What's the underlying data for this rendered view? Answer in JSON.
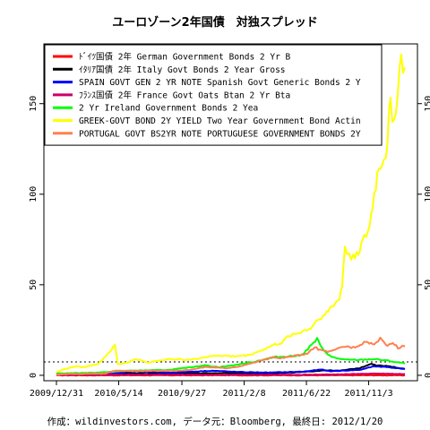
{
  "chart_data": {
    "type": "line",
    "title": "ユーロゾーン2年国債　対独スプレッド",
    "footer": "作成：wildinvestors.com, データ元：Bloomberg, 最終日: 2012/1/20",
    "x_start": "2009-12-31",
    "x_end": "2012-01-20",
    "x_ticks": [
      "2009/12/31",
      "2010/5/14",
      "2010/9/27",
      "2011/2/8",
      "2011/6/22",
      "2011/11/3"
    ],
    "ylim": [
      -3,
      183
    ],
    "y_ticks": [
      0,
      50,
      100,
      150
    ],
    "grid": false,
    "legend_position": "top-left",
    "series": [
      {
        "name": "ﾄﾞｲﾂ国債 2年 German Government Bonds 2 Yr B",
        "color": "#ff0000",
        "points": [
          [
            "2009-12-31",
            0
          ],
          [
            "2012-01-20",
            0
          ]
        ]
      },
      {
        "name": "ｲﾀﾘｱ国債 2年 Italy Govt Bonds 2 Year Gross",
        "color": "#000000",
        "points": [
          [
            "2009-12-31",
            0.5
          ],
          [
            "2010-04-01",
            0.5
          ],
          [
            "2010-05-10",
            1.0
          ],
          [
            "2010-09-01",
            1.0
          ],
          [
            "2011-01-10",
            1.2
          ],
          [
            "2011-04-01",
            1.0
          ],
          [
            "2011-06-15",
            1.8
          ],
          [
            "2011-08-01",
            2.8
          ],
          [
            "2011-09-01",
            2.5
          ],
          [
            "2011-10-15",
            4.0
          ],
          [
            "2011-11-09",
            6.5
          ],
          [
            "2011-11-20",
            5.5
          ],
          [
            "2011-12-15",
            5.0
          ],
          [
            "2012-01-20",
            3.5
          ]
        ]
      },
      {
        "name": "SPAIN GOVT GEN  2 YR NOTE Spanish Govt Generic Bonds 2 Y",
        "color": "#0000ff",
        "points": [
          [
            "2009-12-31",
            0.5
          ],
          [
            "2010-05-01",
            1.0
          ],
          [
            "2010-06-15",
            2.2
          ],
          [
            "2010-09-01",
            1.5
          ],
          [
            "2010-12-01",
            2.5
          ],
          [
            "2011-02-01",
            1.8
          ],
          [
            "2011-04-01",
            1.5
          ],
          [
            "2011-06-15",
            2.0
          ],
          [
            "2011-07-25",
            3.2
          ],
          [
            "2011-08-10",
            2.2
          ],
          [
            "2011-10-15",
            3.0
          ],
          [
            "2011-11-15",
            5.0
          ],
          [
            "2011-12-15",
            4.5
          ],
          [
            "2012-01-20",
            3.5
          ]
        ]
      },
      {
        "name": "ﾌﾗﾝｽ国債 2年 France Govt Oats Btan 2 Yr Bta",
        "color": "#cc0066",
        "points": [
          [
            "2009-12-31",
            0.2
          ],
          [
            "2010-06-01",
            0.3
          ],
          [
            "2011-01-01",
            0.3
          ],
          [
            "2011-06-01",
            0.3
          ],
          [
            "2011-09-01",
            0.5
          ],
          [
            "2011-11-15",
            1.0
          ],
          [
            "2012-01-20",
            0.7
          ]
        ]
      },
      {
        "name": "2 Yr Ireland Government Bonds 2 Yea",
        "color": "#00ff00",
        "points": [
          [
            "2009-12-31",
            1.0
          ],
          [
            "2010-04-01",
            1.5
          ],
          [
            "2010-06-01",
            2.5
          ],
          [
            "2010-09-01",
            3.0
          ],
          [
            "2010-11-15",
            5.5
          ],
          [
            "2010-12-15",
            4.5
          ],
          [
            "2011-01-15",
            5.5
          ],
          [
            "2011-03-01",
            7.5
          ],
          [
            "2011-04-15",
            10.0
          ],
          [
            "2011-05-15",
            10.5
          ],
          [
            "2011-06-10",
            11.0
          ],
          [
            "2011-06-25",
            14.5
          ],
          [
            "2011-07-15",
            20.0
          ],
          [
            "2011-07-25",
            15.0
          ],
          [
            "2011-08-15",
            10.0
          ],
          [
            "2011-09-15",
            8.5
          ],
          [
            "2011-10-15",
            8.5
          ],
          [
            "2011-11-15",
            9.0
          ],
          [
            "2011-12-15",
            8.0
          ],
          [
            "2012-01-20",
            6.5
          ]
        ]
      },
      {
        "name": "GREEK-GOVT BOND 2Y YIELD Two Year Government Bond Actin",
        "color": "#ffff00",
        "points": [
          [
            "2009-12-31",
            2.0
          ],
          [
            "2010-01-20",
            3.5
          ],
          [
            "2010-02-10",
            5.0
          ],
          [
            "2010-03-01",
            4.5
          ],
          [
            "2010-04-01",
            6.5
          ],
          [
            "2010-04-28",
            14.0
          ],
          [
            "2010-05-06",
            16.5
          ],
          [
            "2010-05-12",
            6.0
          ],
          [
            "2010-06-01",
            7.0
          ],
          [
            "2010-06-20",
            9.0
          ],
          [
            "2010-07-15",
            7.0
          ],
          [
            "2010-08-15",
            8.5
          ],
          [
            "2010-09-15",
            9.0
          ],
          [
            "2010-10-15",
            8.5
          ],
          [
            "2010-11-15",
            10.0
          ],
          [
            "2010-12-15",
            11.0
          ],
          [
            "2011-01-15",
            10.5
          ],
          [
            "2011-02-15",
            11.0
          ],
          [
            "2011-03-15",
            13.5
          ],
          [
            "2011-04-15",
            17.0
          ],
          [
            "2011-05-01",
            18.0
          ],
          [
            "2011-05-15",
            22.0
          ],
          [
            "2011-06-01",
            23.0
          ],
          [
            "2011-06-15",
            24.5
          ],
          [
            "2011-07-01",
            26.0
          ],
          [
            "2011-07-20",
            32.0
          ],
          [
            "2011-08-01",
            33.0
          ],
          [
            "2011-08-15",
            38.0
          ],
          [
            "2011-09-01",
            42.0
          ],
          [
            "2011-09-07",
            50.0
          ],
          [
            "2011-09-13",
            72.0
          ],
          [
            "2011-09-22",
            65.0
          ],
          [
            "2011-10-01",
            66.0
          ],
          [
            "2011-10-15",
            70.0
          ],
          [
            "2011-10-25",
            75.0
          ],
          [
            "2011-11-05",
            82.0
          ],
          [
            "2011-11-15",
            100.0
          ],
          [
            "2011-11-25",
            115.0
          ],
          [
            "2011-12-01",
            118.0
          ],
          [
            "2011-12-10",
            122.0
          ],
          [
            "2011-12-20",
            150.0
          ],
          [
            "2011-12-28",
            140.0
          ],
          [
            "2012-01-05",
            160.0
          ],
          [
            "2012-01-12",
            175.0
          ],
          [
            "2012-01-20",
            170.0
          ]
        ]
      },
      {
        "name": "PORTUGAL GOVT BS2YR NOTE PORTUGUESE GOVERNMENT BONDS 2Y",
        "color": "#ff8050",
        "points": [
          [
            "2009-12-31",
            0.5
          ],
          [
            "2010-04-15",
            1.0
          ],
          [
            "2010-05-05",
            2.5
          ],
          [
            "2010-06-01",
            2.5
          ],
          [
            "2010-09-01",
            2.5
          ],
          [
            "2010-10-15",
            3.0
          ],
          [
            "2010-11-15",
            4.5
          ],
          [
            "2011-01-01",
            4.0
          ],
          [
            "2011-02-01",
            5.0
          ],
          [
            "2011-03-15",
            8.0
          ],
          [
            "2011-04-15",
            10.0
          ],
          [
            "2011-05-01",
            9.5
          ],
          [
            "2011-06-01",
            11.0
          ],
          [
            "2011-06-20",
            11.5
          ],
          [
            "2011-07-10",
            15.5
          ],
          [
            "2011-07-25",
            13.5
          ],
          [
            "2011-08-15",
            13.0
          ],
          [
            "2011-09-10",
            16.0
          ],
          [
            "2011-10-01",
            15.5
          ],
          [
            "2011-10-20",
            17.5
          ],
          [
            "2011-11-01",
            18.5
          ],
          [
            "2011-11-15",
            17.0
          ],
          [
            "2011-11-28",
            20.0
          ],
          [
            "2011-12-10",
            16.5
          ],
          [
            "2011-12-25",
            18.0
          ],
          [
            "2012-01-05",
            15.0
          ],
          [
            "2012-01-15",
            16.5
          ],
          [
            "2012-01-20",
            16.0
          ]
        ]
      }
    ]
  }
}
